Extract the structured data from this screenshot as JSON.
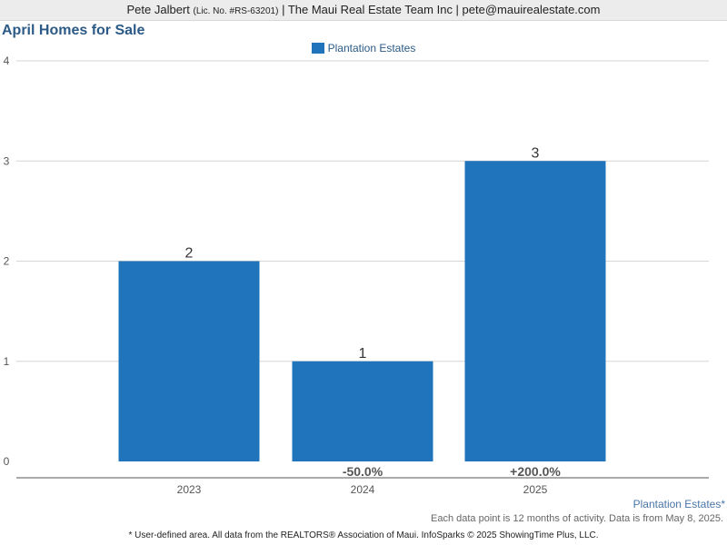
{
  "header": {
    "agent": "Pete Jalbert",
    "license": "(Lic. No. #RS-63201)",
    "rest": "| The Maui Real Estate Team Inc | pete@mauirealestate.com"
  },
  "legend": {
    "label": "Plantation Estates"
  },
  "source_label": "Plantation Estates*",
  "note": "Each data point is 12 months of activity. Data is from May 8, 2025.",
  "footer": "* User-defined area. All data from the REALTORS® Association of Maui. InfoSparks © 2025 ShowingTime Plus, LLC.",
  "colors": {
    "bar": "#1f74bb",
    "title": "#2c5a86"
  },
  "chart_data": {
    "type": "bar",
    "title": "April Homes for Sale",
    "categories": [
      "2023",
      "2024",
      "2025"
    ],
    "series": [
      {
        "name": "Plantation Estates",
        "values": [
          2,
          1,
          3
        ]
      }
    ],
    "changes": [
      "",
      "-50.0%",
      "+200.0%"
    ],
    "ylim": [
      0,
      4
    ],
    "yticks": [
      0,
      1,
      2,
      3,
      4
    ],
    "grid": true,
    "legend_position": "top-center"
  }
}
